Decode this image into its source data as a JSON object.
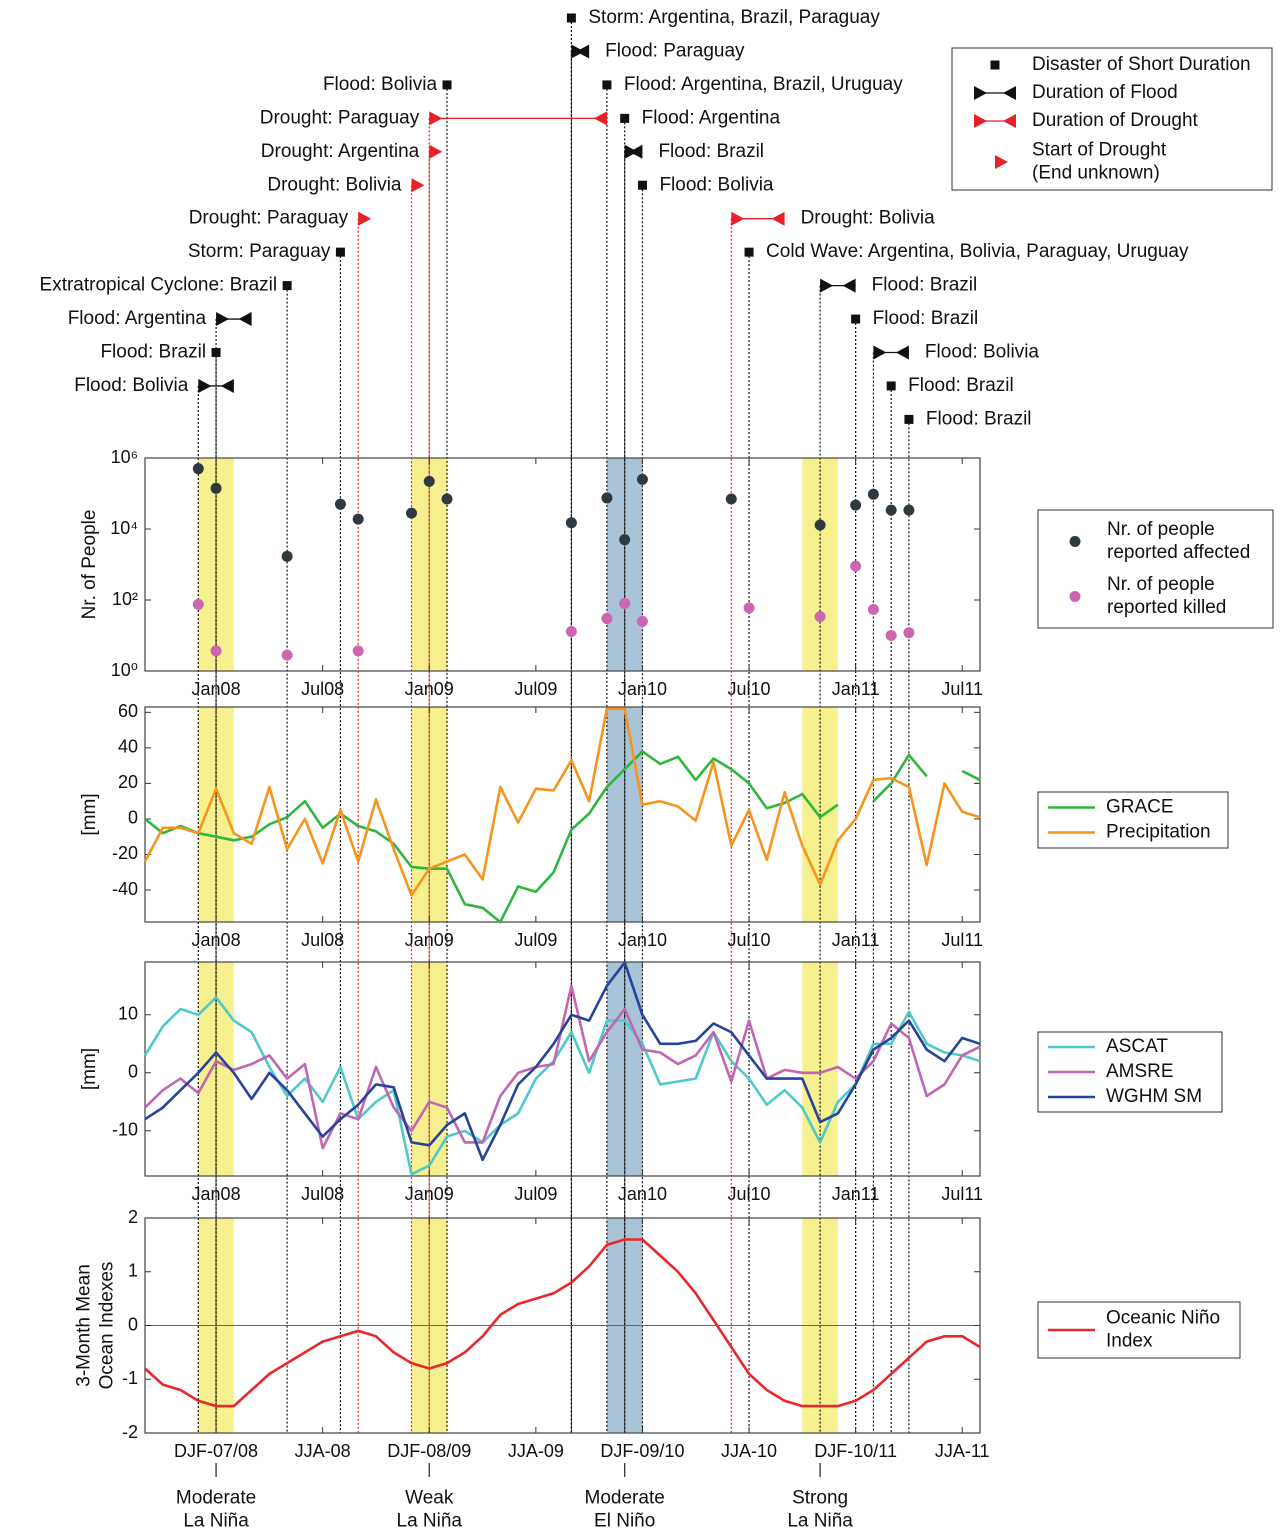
{
  "events": {
    "legend": [
      {
        "label": "Disaster of Short Duration",
        "kind": "short"
      },
      {
        "label": "Duration of Flood",
        "kind": "flood"
      },
      {
        "label": "Duration of Drought",
        "kind": "drought"
      },
      {
        "label": "Start of Drought\n(End unknown)",
        "kind": "drought-start"
      }
    ],
    "items": [
      {
        "label": "Storm: Argentina, Brazil, Paraguay",
        "kind": "short",
        "x": 32
      },
      {
        "label": "Flood: Paraguay",
        "kind": "flood",
        "x": 32,
        "x_end": 33
      },
      {
        "label": "Flood: Bolivia",
        "kind": "short",
        "x": 25
      },
      {
        "label": "Flood: Argentina, Brazil, Uruguay",
        "kind": "short",
        "x": 34
      },
      {
        "label": "Drought: Paraguay",
        "kind": "drought",
        "x": 24,
        "x_end": 34
      },
      {
        "label": "Flood: Argentina",
        "kind": "short",
        "x": 35
      },
      {
        "label": "Drought: Argentina",
        "kind": "drought-start",
        "x": 24
      },
      {
        "label": "Flood: Brazil",
        "kind": "flood",
        "x": 35,
        "x_end": 36
      },
      {
        "label": "Drought: Bolivia",
        "kind": "drought-start",
        "x": 23
      },
      {
        "label": "Flood: Bolivia",
        "kind": "short",
        "x": 36
      },
      {
        "label": "Drought: Paraguay",
        "kind": "drought-start",
        "x": 20
      },
      {
        "label": "Drought: Bolivia",
        "kind": "drought",
        "x": 41,
        "x_end": 44
      },
      {
        "label": "Storm: Paraguay",
        "kind": "short",
        "x": 19
      },
      {
        "label": "Cold Wave: Argentina, Bolivia, Paraguay, Uruguay",
        "kind": "short",
        "x": 42
      },
      {
        "label": "Extratropical Cyclone: Brazil",
        "kind": "short",
        "x": 16
      },
      {
        "label": "Flood: Brazil",
        "kind": "flood",
        "x": 46,
        "x_end": 48
      },
      {
        "label": "Flood: Argentina",
        "kind": "flood",
        "x": 12,
        "x_end": 14
      },
      {
        "label": "Flood: Brazil",
        "kind": "short",
        "x": 48
      },
      {
        "label": "Flood: Brazil",
        "kind": "short",
        "x": 12
      },
      {
        "label": "Flood: Bolivia",
        "kind": "flood",
        "x": 49,
        "x_end": 51
      },
      {
        "label": "Flood: Bolivia",
        "kind": "flood",
        "x": 11,
        "x_end": 13
      },
      {
        "label": "Flood: Brazil",
        "kind": "short",
        "x": 50
      },
      {
        "label": "Flood: Brazil",
        "kind": "short",
        "x": 51
      }
    ]
  },
  "shading": [
    {
      "start": 11,
      "end": 13,
      "color": "#f6f08e"
    },
    {
      "start": 23,
      "end": 25,
      "color": "#f6f08e"
    },
    {
      "start": 34,
      "end": 36,
      "color": "#a9c3d7"
    },
    {
      "start": 45,
      "end": 47,
      "color": "#f6f08e"
    }
  ],
  "chart_data": [
    {
      "type": "scatter",
      "ylabel": "Nr. of People",
      "log_y": true,
      "xlim": [
        8,
        55
      ],
      "xticks": [
        {
          "value": 12,
          "label": "Jan08"
        },
        {
          "value": 18,
          "label": "Jul08"
        },
        {
          "value": 24,
          "label": "Jan09"
        },
        {
          "value": 30,
          "label": "Jul09"
        },
        {
          "value": 36,
          "label": "Jan10"
        },
        {
          "value": 42,
          "label": "Jul10"
        },
        {
          "value": 48,
          "label": "Jan11"
        },
        {
          "value": 54,
          "label": "Jul11"
        }
      ],
      "ylim": [
        1,
        1000000
      ],
      "yticks": [
        {
          "value": 1,
          "label": "10⁰"
        },
        {
          "value": 100,
          "label": "10²"
        },
        {
          "value": 10000,
          "label": "10⁴"
        },
        {
          "value": 1000000,
          "label": "10⁶"
        }
      ],
      "series": [
        {
          "name": "Nr. of people\nreported affected",
          "color": "#2f3a40",
          "x": [
            11,
            12,
            16,
            19,
            20,
            23,
            24,
            25,
            32,
            34,
            35,
            36,
            41,
            46,
            48,
            49,
            50,
            51
          ],
          "values": [
            500000,
            140000,
            1700,
            50000,
            19000,
            28000,
            220000,
            70000,
            15000,
            75000,
            5000,
            250000,
            70000,
            13000,
            47000,
            95000,
            34000,
            34000
          ]
        },
        {
          "name": "Nr. of people\nreported killed",
          "color": "#cc66b3",
          "x": [
            11,
            12,
            16,
            20,
            32,
            34,
            35,
            36,
            42,
            46,
            48,
            49,
            50,
            51
          ],
          "values": [
            75,
            3.7,
            2.8,
            3.7,
            13,
            30,
            80,
            25,
            60,
            34,
            900,
            54,
            10,
            12
          ]
        }
      ]
    },
    {
      "type": "line",
      "ylabel": "[mm]",
      "xlim": [
        8,
        55
      ],
      "xticks": [
        {
          "value": 12,
          "label": "Jan08"
        },
        {
          "value": 18,
          "label": "Jul08"
        },
        {
          "value": 24,
          "label": "Jan09"
        },
        {
          "value": 30,
          "label": "Jul09"
        },
        {
          "value": 36,
          "label": "Jan10"
        },
        {
          "value": 42,
          "label": "Jul10"
        },
        {
          "value": 48,
          "label": "Jan11"
        },
        {
          "value": 54,
          "label": "Jul11"
        }
      ],
      "ylim": [
        -58,
        63
      ],
      "yticks": [
        -40,
        -20,
        0,
        20,
        40,
        60
      ],
      "x": [
        8,
        9,
        10,
        11,
        12,
        13,
        14,
        15,
        16,
        17,
        18,
        19,
        20,
        21,
        22,
        23,
        24,
        25,
        26,
        27,
        28,
        29,
        30,
        31,
        32,
        33,
        34,
        35,
        36,
        37,
        38,
        39,
        40,
        41,
        42,
        43,
        44,
        45,
        46,
        47,
        48,
        49,
        50,
        51,
        52,
        53,
        54,
        55
      ],
      "series": [
        {
          "name": "GRACE",
          "color": "#2db83d",
          "values": [
            0,
            -8,
            -4,
            -8,
            -10,
            -12,
            -10,
            -3,
            1,
            10,
            -5,
            3,
            -4,
            -7,
            -14,
            -27,
            -28,
            -28,
            -48,
            -50,
            -58,
            -38,
            -41,
            -30,
            -6,
            3,
            18,
            28,
            38,
            31,
            35,
            22,
            34,
            28,
            20,
            6,
            9,
            14,
            1,
            8,
            null,
            10,
            20,
            36,
            24,
            null,
            27,
            22
          ]
        },
        {
          "name": "Precipitation",
          "color": "#f7941d",
          "values": [
            -24,
            -5,
            -5,
            -8,
            17,
            -8,
            -14,
            18,
            -17,
            0,
            -25,
            5,
            -24,
            11,
            -17,
            -43,
            -28,
            -24,
            -20,
            -34,
            18,
            -2,
            17,
            16,
            33,
            10,
            62,
            62,
            8,
            10,
            7,
            -1,
            32,
            -15,
            5,
            -23,
            15,
            -15,
            -37,
            -12,
            0,
            22,
            23,
            18,
            -26,
            20,
            4,
            1
          ]
        }
      ]
    },
    {
      "type": "line",
      "ylabel": "[mm]",
      "xlim": [
        8,
        55
      ],
      "xticks": [
        {
          "value": 12,
          "label": "Jan08"
        },
        {
          "value": 18,
          "label": "Jul08"
        },
        {
          "value": 24,
          "label": "Jan09"
        },
        {
          "value": 30,
          "label": "Jul09"
        },
        {
          "value": 36,
          "label": "Jan10"
        },
        {
          "value": 42,
          "label": "Jul10"
        },
        {
          "value": 48,
          "label": "Jan11"
        },
        {
          "value": 54,
          "label": "Jul11"
        }
      ],
      "ylim": [
        -17.8,
        19.1
      ],
      "yticks": [
        -10,
        0,
        10
      ],
      "x": [
        8,
        9,
        10,
        11,
        12,
        13,
        14,
        15,
        16,
        17,
        18,
        19,
        20,
        21,
        22,
        23,
        24,
        25,
        26,
        27,
        28,
        29,
        30,
        31,
        32,
        33,
        34,
        35,
        36,
        37,
        38,
        39,
        40,
        41,
        42,
        43,
        44,
        45,
        46,
        47,
        48,
        49,
        50,
        51,
        52,
        53,
        54,
        55
      ],
      "series": [
        {
          "name": "ASCAT",
          "color": "#4fc9c9",
          "values": [
            3,
            8,
            11,
            10,
            13,
            9,
            7,
            1,
            -4,
            -1,
            -5,
            1,
            -8,
            -5,
            -3,
            -17.5,
            -16,
            -11,
            -10,
            -12,
            -9,
            -7,
            -1,
            2,
            7,
            0,
            9,
            9,
            5,
            -2,
            -1.5,
            -1,
            7,
            2,
            -1,
            -5.5,
            -3,
            -6,
            -12,
            -5,
            -2,
            5,
            5,
            10.5,
            5,
            3.5,
            3,
            2
          ]
        },
        {
          "name": "AMSRE",
          "color": "#c266b3",
          "values": [
            -6,
            -3,
            -1,
            -3.5,
            2,
            0.5,
            1.5,
            3,
            -1,
            1.5,
            -13,
            -7,
            -8,
            1,
            -6,
            -10,
            -5,
            -6,
            -12,
            -12,
            -4,
            0,
            1,
            1.5,
            15,
            2,
            7,
            11,
            4,
            3.5,
            1.5,
            3,
            7,
            -1.5,
            9,
            -1,
            0.5,
            0,
            0,
            1,
            -1,
            2,
            8.5,
            6,
            -4,
            -2,
            3,
            4.5
          ]
        },
        {
          "name": "WGHM SM",
          "color": "#25449a",
          "values": [
            -8,
            -6,
            -3,
            0,
            3.5,
            0,
            -4.5,
            0,
            -3,
            -7,
            -11,
            -8,
            -5.5,
            -2,
            -2.5,
            -12,
            -12.5,
            -9,
            -7,
            -15,
            -9,
            -2,
            1,
            5,
            10,
            9,
            15,
            19,
            10,
            5,
            5,
            5.5,
            8.5,
            7,
            3,
            -1,
            -1,
            -1,
            -8.5,
            -7,
            -2,
            4,
            6,
            9,
            4,
            2,
            6,
            5
          ]
        }
      ]
    },
    {
      "type": "line",
      "ylabel": "3-Month Mean\nOcean Indexes",
      "xlim": [
        8,
        55
      ],
      "xticks": [
        {
          "value": 12,
          "label": "DJF-07/08"
        },
        {
          "value": 18,
          "label": "JJA-08"
        },
        {
          "value": 24,
          "label": "DJF-08/09"
        },
        {
          "value": 30,
          "label": "JJA-09"
        },
        {
          "value": 36,
          "label": "DJF-09/10"
        },
        {
          "value": 42,
          "label": "JJA-10"
        },
        {
          "value": 48,
          "label": "DJF-10/11"
        },
        {
          "value": 54,
          "label": "JJA-11"
        }
      ],
      "ylim": [
        -2,
        2
      ],
      "yticks": [
        -2,
        -1,
        0,
        1,
        2
      ],
      "reference_line": 0,
      "x": [
        8,
        9,
        10,
        11,
        12,
        13,
        14,
        15,
        16,
        17,
        18,
        19,
        20,
        21,
        22,
        23,
        24,
        25,
        26,
        27,
        28,
        29,
        30,
        31,
        32,
        33,
        34,
        35,
        36,
        37,
        38,
        39,
        40,
        41,
        42,
        43,
        44,
        45,
        46,
        47,
        48,
        49,
        50,
        51,
        52,
        53,
        54,
        55
      ],
      "series": [
        {
          "name": "Oceanic Niño\nIndex",
          "color": "#e8282b",
          "values": [
            -0.8,
            -1.1,
            -1.2,
            -1.4,
            -1.5,
            -1.5,
            -1.2,
            -0.9,
            -0.7,
            -0.5,
            -0.3,
            -0.2,
            -0.1,
            -0.2,
            -0.5,
            -0.7,
            -0.8,
            -0.7,
            -0.5,
            -0.2,
            0.2,
            0.4,
            0.5,
            0.6,
            0.8,
            1.1,
            1.5,
            1.6,
            1.6,
            1.3,
            1,
            0.6,
            0.1,
            -0.4,
            -0.9,
            -1.2,
            -1.4,
            -1.5,
            -1.5,
            -1.5,
            -1.4,
            -1.2,
            -0.9,
            -0.6,
            -0.3,
            -0.2,
            -0.2,
            -0.4
          ]
        }
      ],
      "annotations": [
        {
          "x": 12,
          "text": "Moderate\nLa Niña"
        },
        {
          "x": 24,
          "text": "Weak\nLa Niña"
        },
        {
          "x": 35,
          "text": "Moderate\nEl Niño"
        },
        {
          "x": 46,
          "text": "Strong\nLa Niña"
        }
      ]
    }
  ]
}
